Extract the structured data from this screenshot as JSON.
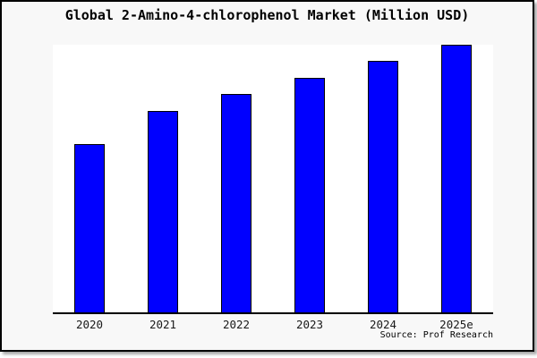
{
  "figure": {
    "background": "#f8f8f8",
    "border_color": "#000000",
    "plot_background": "#ffffff",
    "axis_color": "#000000"
  },
  "header": {
    "title": "Global 2-Amino-4-chlorophenol Market (Million USD)"
  },
  "footer": {
    "source": "Source: Prof Research"
  },
  "chart_data": {
    "type": "bar",
    "title": "Global 2-Amino-4-chlorophenol Market (Million USD)",
    "categories": [
      "2020",
      "2021",
      "2022",
      "2023",
      "2024",
      "2025e"
    ],
    "values": [
      62.9,
      75.3,
      81.6,
      87.6,
      94.0,
      100.0
    ],
    "units": "relative index (tallest bar 2025e = 100); y-axis has no ticks or labels in the image",
    "series_name": "Market size (Million USD)",
    "xlabel": "",
    "ylabel": "",
    "ylim": [
      0,
      100
    ],
    "grid": false,
    "legend": false,
    "bar_color": "#0000ff",
    "bar_edge_color": "#000000",
    "source_note": "Source: Prof Research"
  }
}
